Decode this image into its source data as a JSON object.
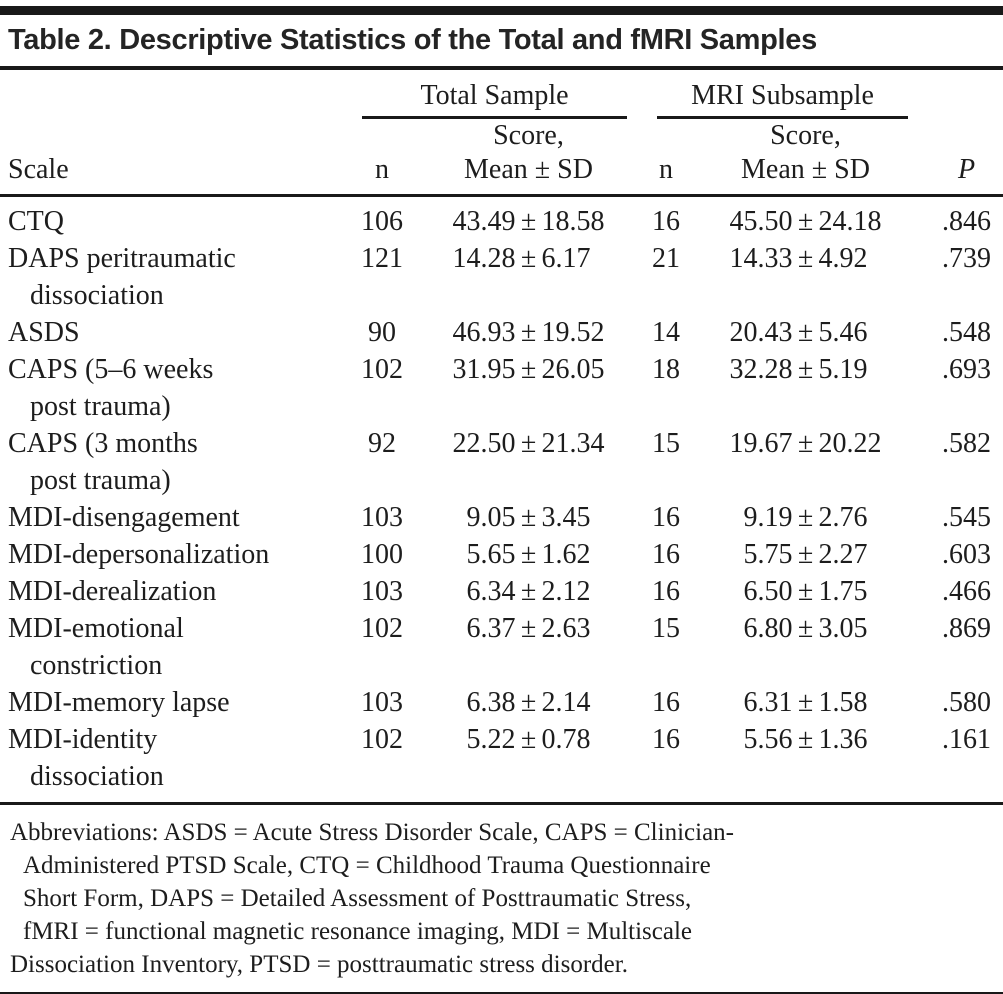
{
  "title": "Table 2. Descriptive Statistics of the Total and fMRI Samples",
  "pm_symbol": "±",
  "header": {
    "scale_label": "Scale",
    "groups": [
      {
        "label": "Total Sample"
      },
      {
        "label": "MRI Subsample"
      }
    ],
    "n_label": "n",
    "score_label": "Score,",
    "mean_sd_label": "Mean ± SD",
    "p_label": "P"
  },
  "rows": [
    {
      "scale": [
        "CTQ"
      ],
      "n_total": "106",
      "mean_total": "43.49",
      "sd_total": "18.58",
      "n_mri": "16",
      "mean_mri": "45.50",
      "sd_mri": "24.18",
      "p": ".846"
    },
    {
      "scale": [
        "DAPS peritraumatic",
        "dissociation"
      ],
      "n_total": "121",
      "mean_total": "14.28",
      "sd_total": "6.17",
      "n_mri": "21",
      "mean_mri": "14.33",
      "sd_mri": "4.92",
      "p": ".739"
    },
    {
      "scale": [
        "ASDS"
      ],
      "n_total": "90",
      "mean_total": "46.93",
      "sd_total": "19.52",
      "n_mri": "14",
      "mean_mri": "20.43",
      "sd_mri": "5.46",
      "p": ".548"
    },
    {
      "scale": [
        "CAPS (5–6 weeks",
        "post trauma)"
      ],
      "n_total": "102",
      "mean_total": "31.95",
      "sd_total": "26.05",
      "n_mri": "18",
      "mean_mri": "32.28",
      "sd_mri": "5.19",
      "p": ".693"
    },
    {
      "scale": [
        "CAPS (3 months",
        "post trauma)"
      ],
      "n_total": "92",
      "mean_total": "22.50",
      "sd_total": "21.34",
      "n_mri": "15",
      "mean_mri": "19.67",
      "sd_mri": "20.22",
      "p": ".582"
    },
    {
      "scale": [
        "MDI-disengagement"
      ],
      "n_total": "103",
      "mean_total": "9.05",
      "sd_total": "3.45",
      "n_mri": "16",
      "mean_mri": "9.19",
      "sd_mri": "2.76",
      "p": ".545"
    },
    {
      "scale": [
        "MDI-depersonalization"
      ],
      "n_total": "100",
      "mean_total": "5.65",
      "sd_total": "1.62",
      "n_mri": "16",
      "mean_mri": "5.75",
      "sd_mri": "2.27",
      "p": ".603"
    },
    {
      "scale": [
        "MDI-derealization"
      ],
      "n_total": "103",
      "mean_total": "6.34",
      "sd_total": "2.12",
      "n_mri": "16",
      "mean_mri": "6.50",
      "sd_mri": "1.75",
      "p": ".466"
    },
    {
      "scale": [
        "MDI-emotional",
        "constriction"
      ],
      "n_total": "102",
      "mean_total": "6.37",
      "sd_total": "2.63",
      "n_mri": "15",
      "mean_mri": "6.80",
      "sd_mri": "3.05",
      "p": ".869"
    },
    {
      "scale": [
        "MDI-memory lapse"
      ],
      "n_total": "103",
      "mean_total": "6.38",
      "sd_total": "2.14",
      "n_mri": "16",
      "mean_mri": "6.31",
      "sd_mri": "1.58",
      "p": ".580"
    },
    {
      "scale": [
        "MDI-identity",
        "dissociation"
      ],
      "n_total": "102",
      "mean_total": "5.22",
      "sd_total": "0.78",
      "n_mri": "16",
      "mean_mri": "5.56",
      "sd_mri": "1.36",
      "p": ".161"
    }
  ],
  "footnote": {
    "lines": [
      {
        "text": "Abbreviations: ASDS = Acute Stress Disorder Scale, CAPS = Clinician-",
        "indent": false
      },
      {
        "text": "Administered PTSD Scale, CTQ = Childhood Trauma Questionnaire",
        "indent": true
      },
      {
        "text": "Short Form, DAPS = Detailed Assessment of Posttraumatic Stress,",
        "indent": true
      },
      {
        "text": "fMRI = functional magnetic resonance imaging, MDI = Multiscale",
        "indent": true
      },
      {
        "text": "Dissociation Inventory, PTSD = posttraumatic stress disorder.",
        "indent": false
      }
    ]
  },
  "colors": {
    "text": "#1d1d1d",
    "rule": "#191919",
    "background": "#ffffff"
  }
}
